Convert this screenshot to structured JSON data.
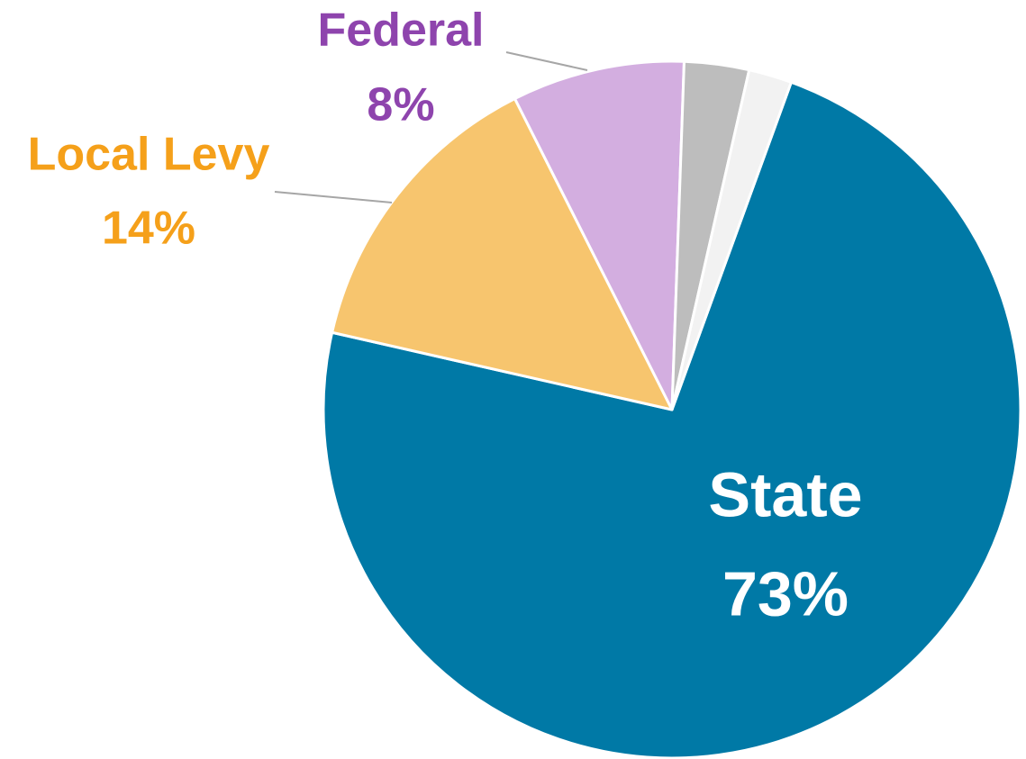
{
  "chart_data": {
    "type": "pie",
    "categories": [
      "State",
      "Local Levy",
      "Federal",
      null,
      null
    ],
    "values": [
      73,
      14,
      8,
      3,
      2
    ],
    "value_labels": [
      "73%",
      "14%",
      "8%",
      null,
      null
    ],
    "colors": [
      "#0079a6",
      "#f7c56e",
      "#d3aee0",
      "#bdbdbd",
      "#f2f2f2"
    ],
    "label_colors": [
      "#ffffff",
      "#f5a01a",
      "#8e44ad",
      null,
      null
    ]
  }
}
